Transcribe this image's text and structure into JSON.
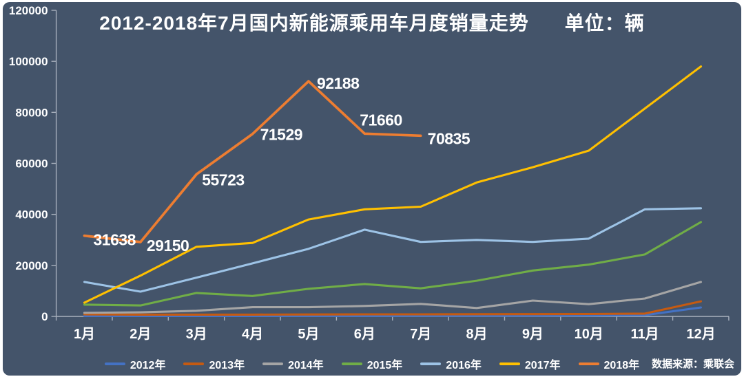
{
  "header": {
    "title": "2012-2018年7月国内新能源乘用车月度销量走势",
    "unit": "单位：辆"
  },
  "footer": {
    "source": "数据来源：乘联会"
  },
  "colors": {
    "background": "#44546a",
    "frame": "#ffffff",
    "axis": "#a9b1be",
    "text": "#ffffff"
  },
  "chart_data": {
    "type": "line",
    "title": "2012-2018年7月国内新能源乘用车月度销量走势",
    "unit": "辆",
    "categories": [
      "1月",
      "2月",
      "3月",
      "4月",
      "5月",
      "6月",
      "7月",
      "8月",
      "9月",
      "10月",
      "11月",
      "12月"
    ],
    "ylim": [
      0,
      120000
    ],
    "yticks": [
      0,
      20000,
      40000,
      60000,
      80000,
      100000,
      120000
    ],
    "grid": false,
    "legend_position": "bottom",
    "series": [
      {
        "name": "2012年",
        "color": "#4472c4",
        "show_labels": false,
        "values": [
          150,
          150,
          150,
          150,
          200,
          200,
          250,
          250,
          300,
          350,
          500,
          3500
        ]
      },
      {
        "name": "2013年",
        "color": "#c55a11",
        "show_labels": false,
        "values": [
          800,
          700,
          700,
          700,
          750,
          800,
          800,
          850,
          900,
          950,
          1100,
          5900
        ]
      },
      {
        "name": "2014年",
        "color": "#a5a5a5",
        "show_labels": false,
        "values": [
          1400,
          1600,
          2200,
          3600,
          3600,
          4100,
          4900,
          3300,
          6200,
          4800,
          7000,
          13500
        ]
      },
      {
        "name": "2015年",
        "color": "#70ad47",
        "show_labels": false,
        "values": [
          4600,
          4300,
          9200,
          8000,
          10800,
          12700,
          11000,
          14000,
          18000,
          20300,
          24300,
          37000
        ]
      },
      {
        "name": "2016年",
        "color": "#9dc3e6",
        "show_labels": false,
        "values": [
          13500,
          9700,
          15200,
          20800,
          26500,
          34000,
          29200,
          30000,
          29200,
          30500,
          42000,
          42400
        ]
      },
      {
        "name": "2017年",
        "color": "#ffc000",
        "show_labels": false,
        "values": [
          5400,
          16000,
          27300,
          28800,
          38000,
          42000,
          43000,
          52500,
          58500,
          65000,
          81500,
          98000
        ]
      },
      {
        "name": "2018年",
        "color": "#ed7d31",
        "show_labels": true,
        "values": [
          31638,
          29150,
          55723,
          71529,
          92188,
          71660,
          70835
        ]
      }
    ]
  }
}
